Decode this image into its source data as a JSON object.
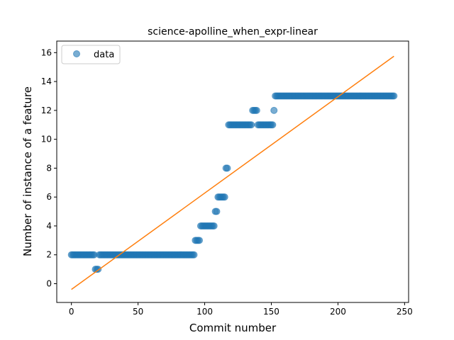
{
  "chart_data": {
    "type": "scatter",
    "title": "science-apolline_when_expr-linear",
    "xlabel": "Commit number",
    "ylabel": "Number of instance of a feature",
    "xlim": [
      -11,
      253
    ],
    "ylim": [
      -1.3,
      16.8
    ],
    "xticks": [
      0,
      50,
      100,
      150,
      200,
      250
    ],
    "yticks": [
      0,
      2,
      4,
      6,
      8,
      10,
      12,
      14,
      16
    ],
    "legend": {
      "position": "top-left",
      "entries": [
        "data"
      ]
    },
    "grid": false,
    "colors": {
      "points": "#1f77b4",
      "fit": "#ff7f0e"
    },
    "segments": [
      {
        "x_start": 0,
        "x_end": 17,
        "y": 2
      },
      {
        "x_start": 18,
        "x_end": 20,
        "y": 1
      },
      {
        "x_start": 21,
        "x_end": 92,
        "y": 2
      },
      {
        "x_start": 93,
        "x_end": 96,
        "y": 3
      },
      {
        "x_start": 97,
        "x_end": 107,
        "y": 4
      },
      {
        "x_start": 108,
        "x_end": 109,
        "y": 5
      },
      {
        "x_start": 110,
        "x_end": 115,
        "y": 6
      },
      {
        "x_start": 116,
        "x_end": 117,
        "y": 8
      },
      {
        "x_start": 118,
        "x_end": 135,
        "y": 11
      },
      {
        "x_start": 136,
        "x_end": 139,
        "y": 12
      },
      {
        "x_start": 140,
        "x_end": 151,
        "y": 11
      },
      {
        "x_start": 152,
        "x_end": 152,
        "y": 12
      },
      {
        "x_start": 153,
        "x_end": 242,
        "y": 13
      }
    ],
    "fit_line": {
      "x": [
        0,
        242
      ],
      "y": [
        -0.4,
        15.75
      ]
    }
  }
}
